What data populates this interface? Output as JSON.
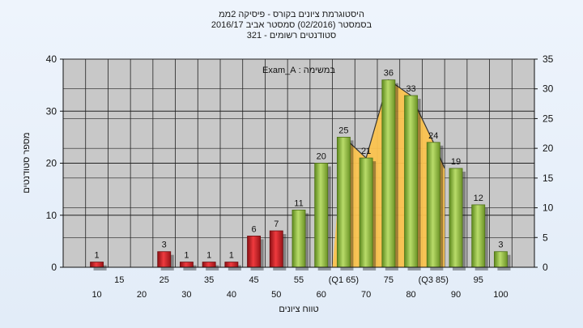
{
  "chart_data": {
    "type": "bar",
    "title_lines": [
      "היסטוגרמת ציונים בקורס - פיסיקה 2ממ",
      "בסמסטר  (02/2016)  סמסטר אביב 2016/17",
      "סטודנטים רשומים - 321"
    ],
    "annotation": "במשימה : Exam_A",
    "xlabel": "טווח ציונים",
    "ylabel": "מספר סטודנטים",
    "ylim": [
      0,
      40
    ],
    "y_ticks": [
      "0",
      "10",
      "20",
      "30",
      "40"
    ],
    "ylim_right": [
      0,
      35
    ],
    "y_ticks_right": [
      "0",
      "5",
      "10",
      "15",
      "20",
      "25",
      "30",
      "35"
    ],
    "x_labels_upper": [
      "15",
      "25",
      "35",
      "45",
      "55",
      "(Q1 65)",
      "75",
      "(Q3 85)",
      "95"
    ],
    "x_labels_lower": [
      "10",
      "20",
      "30",
      "40",
      "50",
      "60",
      "70",
      "80",
      "90",
      "100"
    ],
    "categories": [
      "10",
      "15",
      "20",
      "25",
      "30",
      "35",
      "40",
      "45",
      "50",
      "55",
      "60",
      "65",
      "70",
      "75",
      "80",
      "85",
      "90",
      "95",
      "100"
    ],
    "values": [
      1,
      0,
      0,
      3,
      1,
      1,
      1,
      6,
      7,
      11,
      20,
      25,
      21,
      36,
      33,
      24,
      19,
      12,
      3
    ],
    "value_labels": [
      "1",
      "",
      "",
      "3",
      "1",
      "1",
      "1",
      "6",
      "7",
      "11",
      "20",
      "25",
      "21",
      "36",
      "33",
      "24",
      "19",
      "12",
      "3"
    ],
    "fail_threshold": 55,
    "iqr_band": {
      "from": 65,
      "to": 85
    },
    "grid": true,
    "colors": {
      "fail_bar": "#d9262a",
      "pass_bar": "#9cc24a",
      "iqr_area": "#fbc34f",
      "plot_bg": "#c8c8c8",
      "gridline": "#222222"
    }
  }
}
